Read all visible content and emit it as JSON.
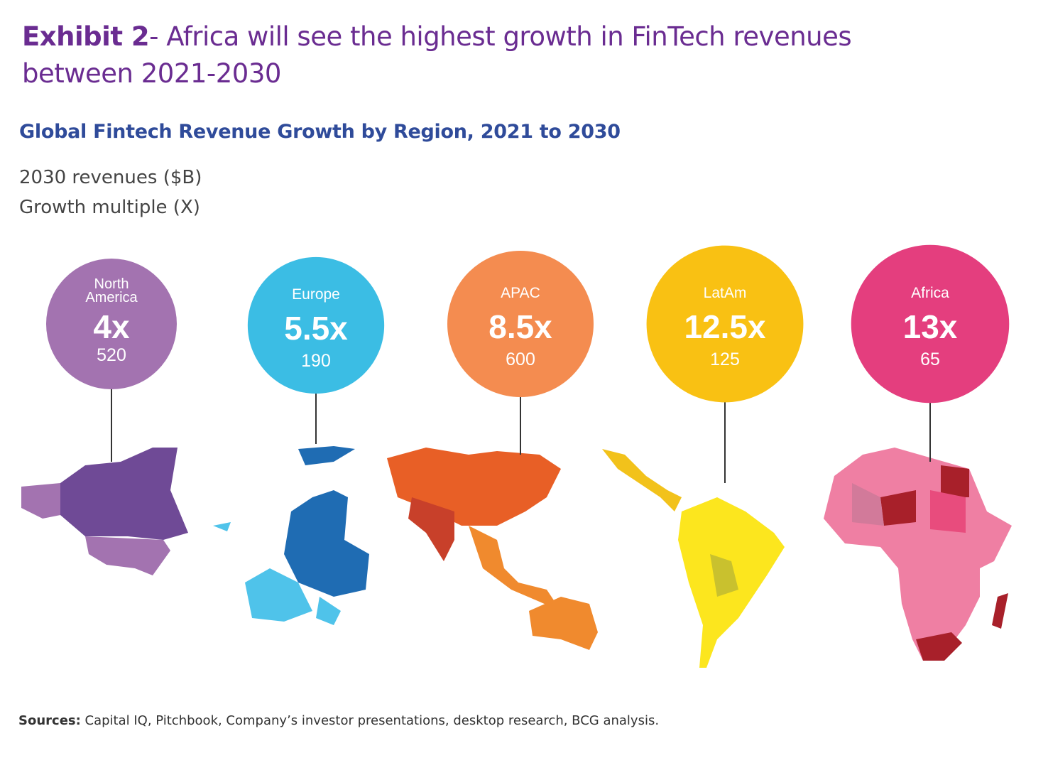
{
  "header": {
    "title_bold": "Exhibit 2",
    "title_rest": "- Africa will see the highest growth in FinTech revenues between 2021-2030",
    "subtitle": "Global Fintech Revenue Growth by Region, 2021 to 2030",
    "legend_line1": "2030 revenues ($B)",
    "legend_line2": "Growth multiple (X)"
  },
  "chart_data": {
    "type": "bubble-map",
    "title": "Global Fintech Revenue Growth by Region, 2021 to 2030",
    "categories": [
      "North America",
      "Europe",
      "APAC",
      "LatAm",
      "Africa"
    ],
    "series": [
      {
        "name": "2030 revenues ($B)",
        "values": [
          520,
          190,
          600,
          125,
          65
        ]
      },
      {
        "name": "Growth multiple (X)",
        "values": [
          4,
          5.5,
          8.5,
          12.5,
          13
        ]
      }
    ],
    "regions": [
      {
        "label": "North America",
        "multiple_label": "4x",
        "revenue_label": "520",
        "color": "#a373b0",
        "map_colors": [
          "#a373b0",
          "#6f4a96"
        ]
      },
      {
        "label": "Europe",
        "multiple_label": "5.5x",
        "revenue_label": "190",
        "color": "#3bbde4",
        "map_colors": [
          "#4fc3ea",
          "#1f6cb3"
        ]
      },
      {
        "label": "APAC",
        "multiple_label": "8.5x",
        "revenue_label": "600",
        "color": "#f48c50",
        "map_colors": [
          "#f08a2e",
          "#e85f26",
          "#c8402a"
        ]
      },
      {
        "label": "LatAm",
        "multiple_label": "12.5x",
        "revenue_label": "125",
        "color": "#f9c113",
        "map_colors": [
          "#fce61e",
          "#f2c21b",
          "#c9c12e"
        ]
      },
      {
        "label": "Africa",
        "multiple_label": "13x",
        "revenue_label": "65",
        "color": "#e43e7e",
        "map_colors": [
          "#ef7fa3",
          "#e84c7d",
          "#a8202a",
          "#d27a9a"
        ]
      }
    ]
  },
  "footer": {
    "sources_label": "Sources:",
    "sources_text": " Capital IQ, Pitchbook, Company’s investor presentations, desktop research, BCG analysis."
  }
}
